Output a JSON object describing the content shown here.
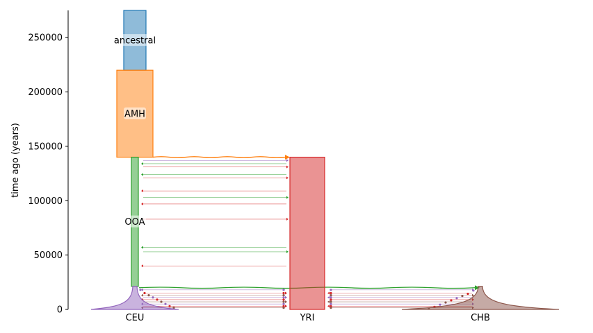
{
  "chart_data": {
    "type": "demography",
    "ylabel": "time ago (years)",
    "ylim": [
      0,
      275000
    ],
    "yticks": [
      0,
      50000,
      100000,
      150000,
      200000,
      250000
    ],
    "ytick_labels": [
      "0",
      "50000",
      "100000",
      "150000",
      "200000",
      "250000"
    ],
    "x_labels": [
      "CEU",
      "YRI",
      "CHB"
    ],
    "colors": {
      "ancestral": "#1f77b4",
      "AMH": "#ff7f0e",
      "OOA": "#2ca02c",
      "YRI": "#d62728",
      "CEU": "#9467bd",
      "CHB": "#8c564b"
    },
    "populations": [
      {
        "name": "ancestral",
        "label": "ancestral",
        "start": 275000,
        "end": 220000
      },
      {
        "name": "AMH",
        "label": "AMH",
        "start": 220000,
        "end": 140000
      },
      {
        "name": "OOA",
        "label": "OOA",
        "start": 140000,
        "end": 21200
      },
      {
        "name": "YRI",
        "label": "",
        "start": 140000,
        "end": 0
      },
      {
        "name": "CEU",
        "label": "",
        "start": 21200,
        "end": 0
      },
      {
        "name": "CHB",
        "label": "",
        "start": 21200,
        "end": 0
      }
    ],
    "splits": [
      {
        "from": "AMH",
        "to": "YRI",
        "time": 140000
      },
      {
        "from": "OOA",
        "to": "CHB",
        "time": 21200
      }
    ],
    "migrations_ooa_yri": [
      {
        "time": 137000,
        "color": "#9467bd"
      },
      {
        "time": 134000,
        "color": "#2ca02c"
      },
      {
        "time": 131000,
        "color": "#d62728"
      },
      {
        "time": 124000,
        "color": "#2ca02c"
      },
      {
        "time": 121000,
        "color": "#d62728"
      },
      {
        "time": 109000,
        "color": "#d62728"
      },
      {
        "time": 103000,
        "color": "#2ca02c"
      },
      {
        "time": 97000,
        "color": "#d62728"
      },
      {
        "time": 83000,
        "color": "#d62728"
      },
      {
        "time": 57000,
        "color": "#2ca02c"
      },
      {
        "time": 53000,
        "color": "#2ca02c"
      },
      {
        "time": 40000,
        "color": "#d62728"
      }
    ],
    "migrations_recent": [
      {
        "time": 18000,
        "color": "#9467bd"
      },
      {
        "time": 15000,
        "color": "#d62728"
      },
      {
        "time": 13000,
        "color": "#8c564b"
      },
      {
        "time": 11000,
        "color": "#9467bd"
      },
      {
        "time": 9000,
        "color": "#d62728"
      },
      {
        "time": 7000,
        "color": "#8c564b"
      },
      {
        "time": 5000,
        "color": "#9467bd"
      },
      {
        "time": 3000,
        "color": "#d62728"
      },
      {
        "time": 1500,
        "color": "#8c564b"
      }
    ]
  }
}
